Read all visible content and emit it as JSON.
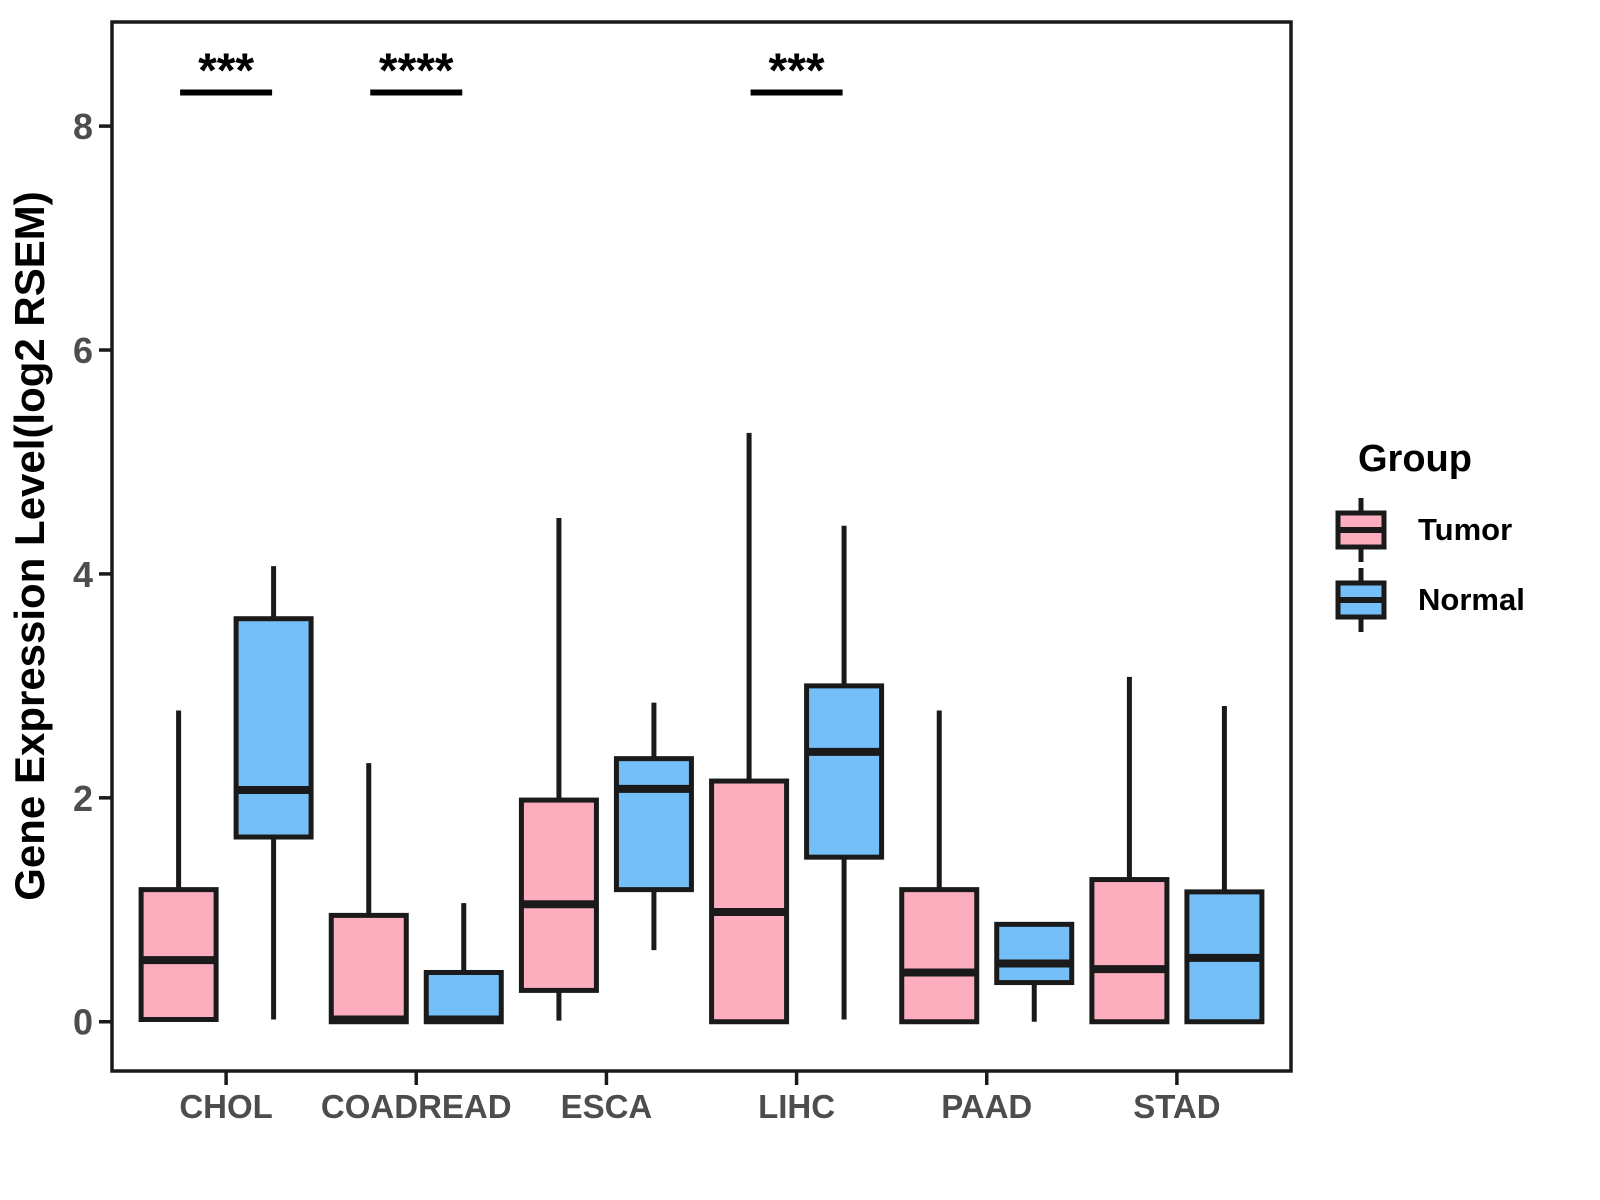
{
  "y_axis": {
    "label": "Gene Expression Level(log2 RSEM)",
    "tick_labels": [
      "0",
      "2",
      "4",
      "6",
      "8"
    ]
  },
  "legend": {
    "title": "Group",
    "items": [
      {
        "label": "Tumor",
        "color": "#FCAEBF"
      },
      {
        "label": "Normal",
        "color": "#74BFF7"
      }
    ]
  },
  "colors": {
    "tumor_fill": "#FCAEBF",
    "normal_fill": "#74BFF7",
    "box_stroke": "#1A1A1A",
    "axis_text": "#4D4D4D",
    "annotation": "#000000"
  },
  "chart_data": {
    "type": "boxplot",
    "title": "",
    "xlabel": "",
    "ylabel": "Gene Expression Level(log2 RSEM)",
    "categories": [
      "CHOL",
      "COADREAD",
      "ESCA",
      "LIHC",
      "PAAD",
      "STAD"
    ],
    "yticks": [
      0,
      2,
      4,
      6,
      8
    ],
    "ylim": [
      -0.44,
      8.93
    ],
    "grid": false,
    "legend_position": "right",
    "series": [
      {
        "name": "Tumor",
        "color": "#FCAEBF",
        "boxes": [
          {
            "category": "CHOL",
            "min": 0.02,
            "q1": 0.02,
            "med": 0.55,
            "q3": 1.18,
            "max": 2.78
          },
          {
            "category": "COADREAD",
            "min": 0.0,
            "q1": 0.0,
            "med": 0.02,
            "q3": 0.95,
            "max": 2.31
          },
          {
            "category": "ESCA",
            "min": 0.01,
            "q1": 0.28,
            "med": 1.05,
            "q3": 1.98,
            "max": 4.5
          },
          {
            "category": "LIHC",
            "min": 0.0,
            "q1": 0.0,
            "med": 0.98,
            "q3": 2.15,
            "max": 5.26
          },
          {
            "category": "PAAD",
            "min": 0.0,
            "q1": 0.0,
            "med": 0.44,
            "q3": 1.18,
            "max": 2.78
          },
          {
            "category": "STAD",
            "min": 0.0,
            "q1": 0.0,
            "med": 0.47,
            "q3": 1.27,
            "max": 3.08
          }
        ]
      },
      {
        "name": "Normal",
        "color": "#74BFF7",
        "boxes": [
          {
            "category": "CHOL",
            "min": 0.02,
            "q1": 1.65,
            "med": 2.07,
            "q3": 3.6,
            "max": 4.07
          },
          {
            "category": "COADREAD",
            "min": 0.0,
            "q1": 0.0,
            "med": 0.02,
            "q3": 0.44,
            "max": 1.06
          },
          {
            "category": "ESCA",
            "min": 0.64,
            "q1": 1.18,
            "med": 2.08,
            "q3": 2.35,
            "max": 2.85
          },
          {
            "category": "LIHC",
            "min": 0.02,
            "q1": 1.47,
            "med": 2.41,
            "q3": 3.0,
            "max": 4.43
          },
          {
            "category": "PAAD",
            "min": 0.0,
            "q1": 0.35,
            "med": 0.52,
            "q3": 0.87,
            "max": 0.87
          },
          {
            "category": "STAD",
            "min": 0.0,
            "q1": 0.0,
            "med": 0.57,
            "q3": 1.16,
            "max": 2.82
          }
        ]
      }
    ],
    "significance": [
      {
        "category": "CHOL",
        "label": "***",
        "bar_y": 8.3
      },
      {
        "category": "COADREAD",
        "label": "****",
        "bar_y": 8.3
      },
      {
        "category": "LIHC",
        "label": "***",
        "bar_y": 8.3
      }
    ]
  }
}
